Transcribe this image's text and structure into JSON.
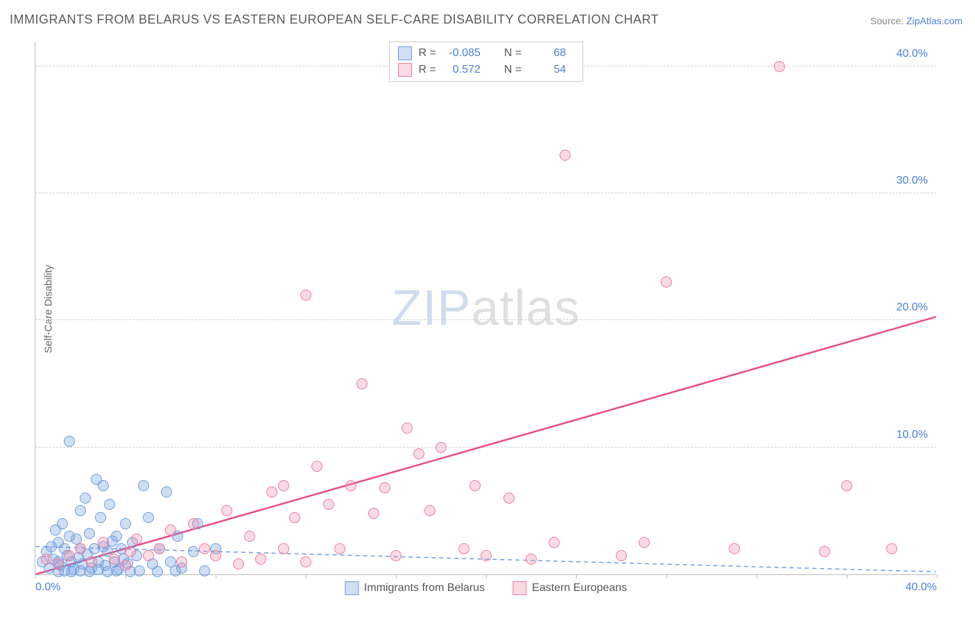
{
  "title": "IMMIGRANTS FROM BELARUS VS EASTERN EUROPEAN SELF-CARE DISABILITY CORRELATION CHART",
  "source_label": "Source: ",
  "source_site": "ZipAtlas.com",
  "ylabel": "Self-Care Disability",
  "watermark": {
    "z": "ZIP",
    "rest": "atlas"
  },
  "chart": {
    "type": "scatter",
    "xlim": [
      0,
      40
    ],
    "ylim": [
      0,
      42
    ],
    "y_ticks": [
      10,
      20,
      30,
      40
    ],
    "y_tick_labels": [
      "10.0%",
      "20.0%",
      "30.0%",
      "40.0%"
    ],
    "x_tick_positions": [
      0,
      4,
      8,
      12,
      16,
      20,
      24,
      28,
      32,
      36,
      40
    ],
    "x_label_start": "0.0%",
    "x_label_end": "40.0%",
    "grid_color": "#d0d0d0",
    "axis_color": "#bbbbbb",
    "tick_label_color": "#4a7fd8",
    "background_color": "#ffffff",
    "marker_radius": 8,
    "marker_stroke_width": 1.5,
    "series": [
      {
        "name": "Immigrants from Belarus",
        "fill": "rgba(120,160,220,0.35)",
        "stroke": "#6a9de0",
        "R": "-0.085",
        "N": "68",
        "trend": {
          "x1": 0,
          "y1": 2.2,
          "x2": 40,
          "y2": 0.2,
          "color": "#6a9de0",
          "dash": "6,5",
          "width": 1.5
        },
        "points": [
          [
            0.3,
            1.0
          ],
          [
            0.5,
            1.8
          ],
          [
            0.6,
            0.5
          ],
          [
            0.7,
            2.2
          ],
          [
            0.8,
            1.2
          ],
          [
            0.9,
            3.5
          ],
          [
            1.0,
            1.0
          ],
          [
            1.0,
            2.5
          ],
          [
            1.1,
            0.7
          ],
          [
            1.2,
            4.0
          ],
          [
            1.3,
            2.0
          ],
          [
            1.4,
            1.5
          ],
          [
            1.5,
            3.0
          ],
          [
            1.5,
            10.5
          ],
          [
            1.6,
            1.0
          ],
          [
            1.7,
            0.4
          ],
          [
            1.8,
            2.8
          ],
          [
            1.9,
            1.3
          ],
          [
            2.0,
            5.0
          ],
          [
            2.0,
            2.0
          ],
          [
            2.1,
            0.8
          ],
          [
            2.2,
            6.0
          ],
          [
            2.3,
            1.6
          ],
          [
            2.4,
            3.2
          ],
          [
            2.5,
            0.5
          ],
          [
            2.6,
            2.0
          ],
          [
            2.7,
            7.5
          ],
          [
            2.8,
            1.0
          ],
          [
            2.9,
            4.5
          ],
          [
            3.0,
            2.2
          ],
          [
            3.0,
            7.0
          ],
          [
            3.1,
            0.7
          ],
          [
            3.2,
            1.8
          ],
          [
            3.3,
            5.5
          ],
          [
            3.4,
            2.6
          ],
          [
            3.5,
            1.0
          ],
          [
            3.6,
            3.0
          ],
          [
            3.7,
            0.4
          ],
          [
            3.8,
            2.0
          ],
          [
            3.9,
            1.2
          ],
          [
            4.0,
            4.0
          ],
          [
            4.1,
            0.9
          ],
          [
            4.3,
            2.5
          ],
          [
            4.5,
            1.5
          ],
          [
            4.8,
            7.0
          ],
          [
            5.0,
            4.5
          ],
          [
            5.2,
            0.8
          ],
          [
            5.5,
            2.0
          ],
          [
            5.8,
            6.5
          ],
          [
            6.0,
            1.0
          ],
          [
            6.3,
            3.0
          ],
          [
            6.5,
            0.5
          ],
          [
            7.0,
            1.8
          ],
          [
            7.2,
            4.0
          ],
          [
            7.5,
            0.3
          ],
          [
            8.0,
            2.0
          ],
          [
            1.0,
            0.2
          ],
          [
            1.3,
            0.3
          ],
          [
            1.6,
            0.2
          ],
          [
            2.0,
            0.3
          ],
          [
            2.4,
            0.2
          ],
          [
            2.8,
            0.4
          ],
          [
            3.2,
            0.2
          ],
          [
            3.6,
            0.3
          ],
          [
            4.2,
            0.2
          ],
          [
            4.6,
            0.3
          ],
          [
            5.4,
            0.2
          ],
          [
            6.2,
            0.3
          ]
        ]
      },
      {
        "name": "Eastern Europeans",
        "fill": "rgba(240,150,175,0.35)",
        "stroke": "#e87da0",
        "R": "0.572",
        "N": "54",
        "trend": {
          "x1": 0,
          "y1": 0.0,
          "x2": 40,
          "y2": 20.3,
          "color": "#e64b82",
          "dash": "none",
          "width": 2.5
        },
        "points": [
          [
            0.5,
            1.2
          ],
          [
            1.0,
            0.8
          ],
          [
            1.5,
            1.5
          ],
          [
            2.0,
            2.0
          ],
          [
            2.5,
            1.0
          ],
          [
            3.0,
            2.5
          ],
          [
            3.5,
            1.2
          ],
          [
            4.0,
            0.7
          ],
          [
            4.5,
            2.8
          ],
          [
            5.0,
            1.5
          ],
          [
            5.5,
            2.0
          ],
          [
            6.0,
            3.5
          ],
          [
            6.5,
            1.0
          ],
          [
            7.0,
            4.0
          ],
          [
            7.5,
            2.0
          ],
          [
            8.0,
            1.5
          ],
          [
            8.5,
            5.0
          ],
          [
            9.0,
            0.8
          ],
          [
            9.5,
            3.0
          ],
          [
            10.0,
            1.2
          ],
          [
            10.5,
            6.5
          ],
          [
            11.0,
            2.0
          ],
          [
            11.0,
            7.0
          ],
          [
            11.5,
            4.5
          ],
          [
            12.0,
            22.0
          ],
          [
            12.0,
            1.0
          ],
          [
            12.5,
            8.5
          ],
          [
            13.0,
            5.5
          ],
          [
            13.5,
            2.0
          ],
          [
            14.0,
            7.0
          ],
          [
            14.5,
            15.0
          ],
          [
            15.0,
            4.8
          ],
          [
            15.5,
            6.8
          ],
          [
            16.0,
            1.5
          ],
          [
            16.5,
            11.5
          ],
          [
            17.0,
            9.5
          ],
          [
            17.5,
            5.0
          ],
          [
            18.0,
            10.0
          ],
          [
            19.0,
            2.0
          ],
          [
            19.5,
            7.0
          ],
          [
            20.0,
            1.5
          ],
          [
            21.0,
            6.0
          ],
          [
            22.0,
            1.2
          ],
          [
            23.0,
            2.5
          ],
          [
            23.5,
            33.0
          ],
          [
            26.0,
            1.5
          ],
          [
            27.0,
            2.5
          ],
          [
            28.0,
            23.0
          ],
          [
            31.0,
            2.0
          ],
          [
            33.0,
            40.0
          ],
          [
            35.0,
            1.8
          ],
          [
            36.0,
            7.0
          ],
          [
            38.0,
            2.0
          ],
          [
            4.2,
            1.8
          ]
        ]
      }
    ]
  },
  "legend_top_labels": {
    "R": "R =",
    "N": "N ="
  },
  "legend_bottom": [
    {
      "label": "Immigrants from Belarus",
      "fill": "rgba(120,160,220,0.35)",
      "stroke": "#6a9de0"
    },
    {
      "label": "Eastern Europeans",
      "fill": "rgba(240,150,175,0.35)",
      "stroke": "#e87da0"
    }
  ]
}
